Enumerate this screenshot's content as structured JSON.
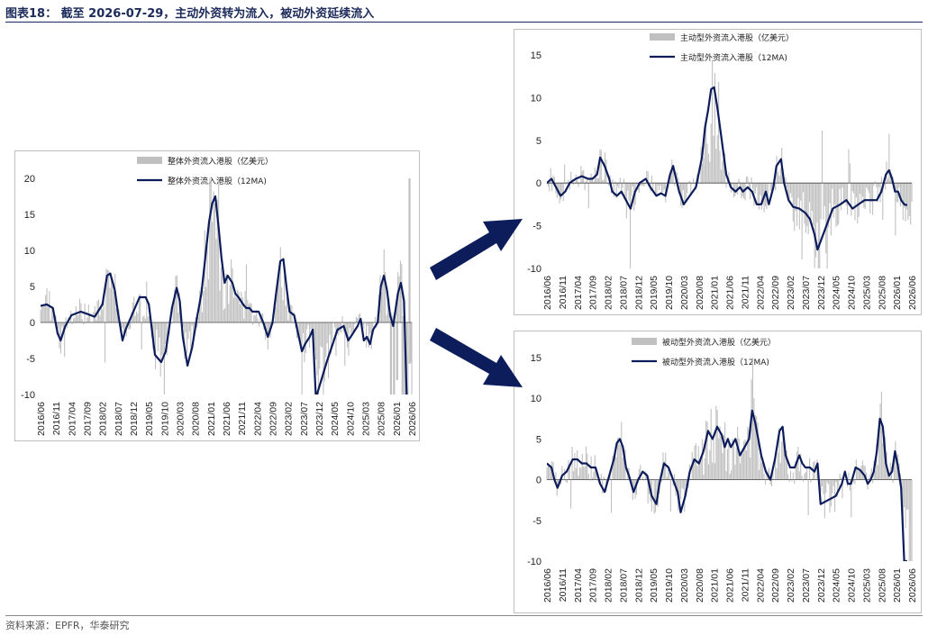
{
  "page": {
    "title": "图表18： 截至 2026-07-29，主动外资转为流入，被动外资延续流入",
    "source": "资料来源：EPFR，华泰研究"
  },
  "chart_data": [
    {
      "id": "overall",
      "type": "bar+line",
      "legend_placement": "top",
      "ylim": [
        -10,
        20
      ],
      "yticks": [
        -10,
        -5,
        0,
        5,
        10,
        15,
        20
      ],
      "series": [
        {
          "name": "整体外资流入港股（亿美元）",
          "kind": "bar",
          "color": "#c0c0c0"
        },
        {
          "name": "整体外资流入港股（12MA)",
          "kind": "line",
          "color": "#0d1d5c"
        }
      ],
      "x_labels": [
        "2016/06",
        "2016/11",
        "2017/04",
        "2017/09",
        "2018/02",
        "2018/07",
        "2018/12",
        "2019/05",
        "2019/10",
        "2020/03",
        "2020/08",
        "2021/01",
        "2021/06",
        "2021/11",
        "2022/04",
        "2022/09",
        "2023/02",
        "2023/07",
        "2023/12",
        "2024/05",
        "2024/10",
        "2025/03",
        "2025/08",
        "2026/01",
        "2026/06"
      ],
      "ma_points": [
        [
          0,
          2.3
        ],
        [
          0.4,
          2.5
        ],
        [
          0.8,
          2
        ],
        [
          1.1,
          -1.5
        ],
        [
          1.3,
          -2.5
        ],
        [
          1.6,
          -0.5
        ],
        [
          2,
          1
        ],
        [
          2.6,
          1.5
        ],
        [
          3,
          1.2
        ],
        [
          3.5,
          0.8
        ],
        [
          4,
          2.5
        ],
        [
          4.3,
          6.5
        ],
        [
          4.5,
          6.8
        ],
        [
          4.8,
          4.5
        ],
        [
          5,
          1.5
        ],
        [
          5.3,
          -2.5
        ],
        [
          5.5,
          -1
        ],
        [
          6,
          1.5
        ],
        [
          6.4,
          3.5
        ],
        [
          6.8,
          3.5
        ],
        [
          7,
          2.5
        ],
        [
          7.2,
          -1
        ],
        [
          7.4,
          -4.5
        ],
        [
          7.8,
          -5.5
        ],
        [
          8.1,
          -4
        ],
        [
          8.5,
          2
        ],
        [
          8.8,
          4.8
        ],
        [
          9,
          3
        ],
        [
          9.2,
          -2
        ],
        [
          9.5,
          -6
        ],
        [
          9.8,
          -3.5
        ],
        [
          10.1,
          0.5
        ],
        [
          10.4,
          4
        ],
        [
          10.6,
          8
        ],
        [
          10.9,
          14
        ],
        [
          11.1,
          16.5
        ],
        [
          11.3,
          17.5
        ],
        [
          11.5,
          13.5
        ],
        [
          11.7,
          9
        ],
        [
          11.9,
          5.5
        ],
        [
          12.1,
          6.5
        ],
        [
          12.4,
          5.5
        ],
        [
          12.6,
          4
        ],
        [
          12.8,
          3.5
        ],
        [
          13.1,
          2.5
        ],
        [
          13.3,
          2
        ],
        [
          13.5,
          2
        ],
        [
          13.7,
          1.5
        ],
        [
          14.1,
          1.5
        ],
        [
          14.4,
          0
        ],
        [
          14.7,
          -2
        ],
        [
          15,
          0
        ],
        [
          15.2,
          3.5
        ],
        [
          15.5,
          8.5
        ],
        [
          15.7,
          8.8
        ],
        [
          15.9,
          5
        ],
        [
          16.1,
          1.5
        ],
        [
          16.4,
          1
        ],
        [
          16.7,
          -2
        ],
        [
          16.9,
          -4
        ],
        [
          17.1,
          -3
        ],
        [
          17.4,
          -2
        ],
        [
          17.6,
          -1
        ],
        [
          17.8,
          -10.5
        ],
        [
          18.5,
          -5.5
        ],
        [
          19.2,
          -1
        ],
        [
          19.6,
          -0.5
        ],
        [
          19.9,
          -2.5
        ],
        [
          20.2,
          -1.5
        ],
        [
          20.5,
          -0.5
        ],
        [
          20.7,
          0.5
        ],
        [
          20.9,
          -2.5
        ],
        [
          21.1,
          -2
        ],
        [
          21.3,
          -3
        ],
        [
          21.5,
          -1
        ],
        [
          21.8,
          0
        ],
        [
          22,
          5
        ],
        [
          22.2,
          6.5
        ],
        [
          22.4,
          4.5
        ],
        [
          22.6,
          1
        ],
        [
          22.8,
          -0.5
        ],
        [
          23.1,
          4
        ],
        [
          23.3,
          5.5
        ],
        [
          23.5,
          3
        ],
        [
          23.7,
          -12
        ]
      ],
      "bar_override": [
        [
          22.65,
          -10
        ],
        [
          22.85,
          -10
        ],
        [
          23.05,
          -8
        ],
        [
          23.4,
          -10
        ],
        [
          23.55,
          -10
        ],
        [
          23.85,
          20
        ],
        [
          23.95,
          -5.5
        ]
      ]
    },
    {
      "id": "active",
      "type": "bar+line",
      "legend_placement": "top",
      "ylim": [
        -10,
        15
      ],
      "yticks": [
        -10,
        -5,
        0,
        5,
        10,
        15
      ],
      "series": [
        {
          "name": "主动型外资流入港股（亿美元）",
          "kind": "bar",
          "color": "#c0c0c0"
        },
        {
          "name": "主动型外资流入港股（12MA)",
          "kind": "line",
          "color": "#0d1d5c"
        }
      ],
      "x_labels": [
        "2016/06",
        "2016/11",
        "2017/04",
        "2017/09",
        "2018/02",
        "2018/07",
        "2018/12",
        "2019/05",
        "2019/10",
        "2020/03",
        "2020/08",
        "2021/01",
        "2021/06",
        "2021/11",
        "2022/04",
        "2022/09",
        "2023/02",
        "2023/07",
        "2023/12",
        "2024/05",
        "2024/10",
        "2025/03",
        "2025/08",
        "2026/01",
        "2026/06"
      ],
      "ma_points": [
        [
          0,
          0
        ],
        [
          0.3,
          0.5
        ],
        [
          0.6,
          -0.5
        ],
        [
          0.9,
          -1.5
        ],
        [
          1.2,
          -1
        ],
        [
          1.5,
          0
        ],
        [
          1.9,
          0.5
        ],
        [
          2.3,
          0.8
        ],
        [
          2.7,
          0.5
        ],
        [
          3,
          0.5
        ],
        [
          3.3,
          1
        ],
        [
          3.5,
          3
        ],
        [
          3.8,
          2
        ],
        [
          4.1,
          0.5
        ],
        [
          4.3,
          -1
        ],
        [
          4.6,
          -1.5
        ],
        [
          4.9,
          -1
        ],
        [
          5.2,
          -2
        ],
        [
          5.5,
          -3
        ],
        [
          5.8,
          -1
        ],
        [
          6.1,
          0
        ],
        [
          6.5,
          0.5
        ],
        [
          6.8,
          -0.5
        ],
        [
          7.2,
          -1.5
        ],
        [
          7.5,
          -1.2
        ],
        [
          7.8,
          -1.5
        ],
        [
          8.1,
          1
        ],
        [
          8.3,
          2
        ],
        [
          8.5,
          0.5
        ],
        [
          8.7,
          -1
        ],
        [
          9,
          -2.5
        ],
        [
          9.4,
          -1.5
        ],
        [
          9.8,
          -0.5
        ],
        [
          10.2,
          3
        ],
        [
          10.4,
          6.5
        ],
        [
          10.6,
          8.5
        ],
        [
          10.8,
          11
        ],
        [
          11,
          11.2
        ],
        [
          11.2,
          9
        ],
        [
          11.5,
          5
        ],
        [
          11.8,
          1
        ],
        [
          12.1,
          -0.5
        ],
        [
          12.4,
          -1
        ],
        [
          12.7,
          -0.5
        ],
        [
          12.9,
          -1
        ],
        [
          13.2,
          -0.5
        ],
        [
          13.5,
          -1
        ],
        [
          13.8,
          -2.5
        ],
        [
          14.1,
          -2.5
        ],
        [
          14.4,
          -1
        ],
        [
          14.6,
          -2.5
        ],
        [
          14.9,
          -0.5
        ],
        [
          15.1,
          2
        ],
        [
          15.4,
          2.8
        ],
        [
          15.6,
          0
        ],
        [
          15.9,
          -2
        ],
        [
          16.2,
          -2.8
        ],
        [
          16.6,
          -3
        ],
        [
          17,
          -3.5
        ],
        [
          17.3,
          -4.2
        ],
        [
          17.6,
          -6
        ],
        [
          17.8,
          -7.8
        ],
        [
          18.8,
          -3
        ],
        [
          19.3,
          -2.5
        ],
        [
          19.7,
          -2
        ],
        [
          20.1,
          -3
        ],
        [
          20.5,
          -2.5
        ],
        [
          20.9,
          -2
        ],
        [
          21.3,
          -2
        ],
        [
          21.7,
          -2
        ],
        [
          22,
          -1
        ],
        [
          22.3,
          1
        ],
        [
          22.5,
          1.5
        ],
        [
          22.7,
          0.5
        ],
        [
          22.9,
          -1
        ],
        [
          23.1,
          -1
        ],
        [
          23.3,
          -2
        ],
        [
          23.5,
          -2.5
        ],
        [
          23.7,
          -2.6
        ]
      ]
    },
    {
      "id": "passive",
      "type": "bar+line",
      "legend_placement": "top",
      "ylim": [
        -10,
        15
      ],
      "yticks": [
        -10,
        -5,
        0,
        5,
        10,
        15
      ],
      "series": [
        {
          "name": "被动型外资流入港股（亿美元）",
          "kind": "bar",
          "color": "#c0c0c0"
        },
        {
          "name": "被动型外资流入港股（12MA)",
          "kind": "line",
          "color": "#0d1d5c"
        }
      ],
      "x_labels": [
        "2016/06",
        "2016/11",
        "2017/04",
        "2017/09",
        "2018/02",
        "2018/07",
        "2018/12",
        "2019/05",
        "2019/10",
        "2020/03",
        "2020/08",
        "2021/01",
        "2021/06",
        "2021/11",
        "2022/04",
        "2022/09",
        "2023/02",
        "2023/07",
        "2023/12",
        "2024/05",
        "2024/10",
        "2025/03",
        "2025/08",
        "2026/01",
        "2026/06"
      ],
      "ma_points": [
        [
          0,
          2
        ],
        [
          0.3,
          1.5
        ],
        [
          0.5,
          0
        ],
        [
          0.7,
          -1
        ],
        [
          1,
          0.5
        ],
        [
          1.3,
          1
        ],
        [
          1.7,
          2.5
        ],
        [
          2,
          2.5
        ],
        [
          2.3,
          2
        ],
        [
          2.6,
          2
        ],
        [
          2.9,
          1.5
        ],
        [
          3.2,
          1.5
        ],
        [
          3.5,
          -0.5
        ],
        [
          3.8,
          -1.5
        ],
        [
          4.1,
          0.5
        ],
        [
          4.4,
          2.5
        ],
        [
          4.6,
          4.5
        ],
        [
          4.8,
          5
        ],
        [
          5,
          4
        ],
        [
          5.2,
          1.5
        ],
        [
          5.4,
          0.5
        ],
        [
          5.7,
          -1.5
        ],
        [
          6,
          0
        ],
        [
          6.3,
          1
        ],
        [
          6.6,
          0.5
        ],
        [
          6.9,
          -2
        ],
        [
          7.2,
          -3
        ],
        [
          7.4,
          -0.5
        ],
        [
          7.7,
          2
        ],
        [
          8,
          1.5
        ],
        [
          8.3,
          0
        ],
        [
          8.6,
          -1.5
        ],
        [
          8.8,
          -4
        ],
        [
          9.1,
          -2
        ],
        [
          9.4,
          1
        ],
        [
          9.7,
          2.5
        ],
        [
          10,
          2
        ],
        [
          10.3,
          3.5
        ],
        [
          10.6,
          6
        ],
        [
          10.9,
          5
        ],
        [
          11.2,
          6.5
        ],
        [
          11.5,
          5.5
        ],
        [
          11.7,
          4
        ],
        [
          11.9,
          5
        ],
        [
          12.1,
          4
        ],
        [
          12.4,
          5
        ],
        [
          12.7,
          3
        ],
        [
          13,
          4
        ],
        [
          13.3,
          5
        ],
        [
          13.5,
          8.5
        ],
        [
          13.7,
          7
        ],
        [
          13.9,
          5
        ],
        [
          14.1,
          3
        ],
        [
          14.4,
          1
        ],
        [
          14.7,
          0
        ],
        [
          15,
          2.5
        ],
        [
          15.3,
          6
        ],
        [
          15.5,
          6.5
        ],
        [
          15.7,
          3
        ],
        [
          16,
          1.5
        ],
        [
          16.3,
          1.5
        ],
        [
          16.6,
          3
        ],
        [
          16.8,
          2
        ],
        [
          17,
          1.5
        ],
        [
          17.3,
          1.5
        ],
        [
          17.6,
          1
        ],
        [
          17.8,
          2
        ],
        [
          18,
          -3
        ],
        [
          18.5,
          -2.5
        ],
        [
          19,
          -2
        ],
        [
          19.4,
          -0.5
        ],
        [
          19.6,
          1
        ],
        [
          19.8,
          -0.5
        ],
        [
          20,
          -0.5
        ],
        [
          20.3,
          1.5
        ],
        [
          20.6,
          1.2
        ],
        [
          20.9,
          0.5
        ],
        [
          21.1,
          -0.5
        ],
        [
          21.3,
          0
        ],
        [
          21.5,
          1
        ],
        [
          21.7,
          3.5
        ],
        [
          21.9,
          7.5
        ],
        [
          22.1,
          6.5
        ],
        [
          22.3,
          2
        ],
        [
          22.5,
          0.5
        ],
        [
          22.7,
          1
        ],
        [
          22.9,
          3.5
        ],
        [
          23.1,
          1.5
        ],
        [
          23.3,
          -1
        ],
        [
          23.5,
          -10
        ],
        [
          23.7,
          -10
        ]
      ]
    }
  ]
}
